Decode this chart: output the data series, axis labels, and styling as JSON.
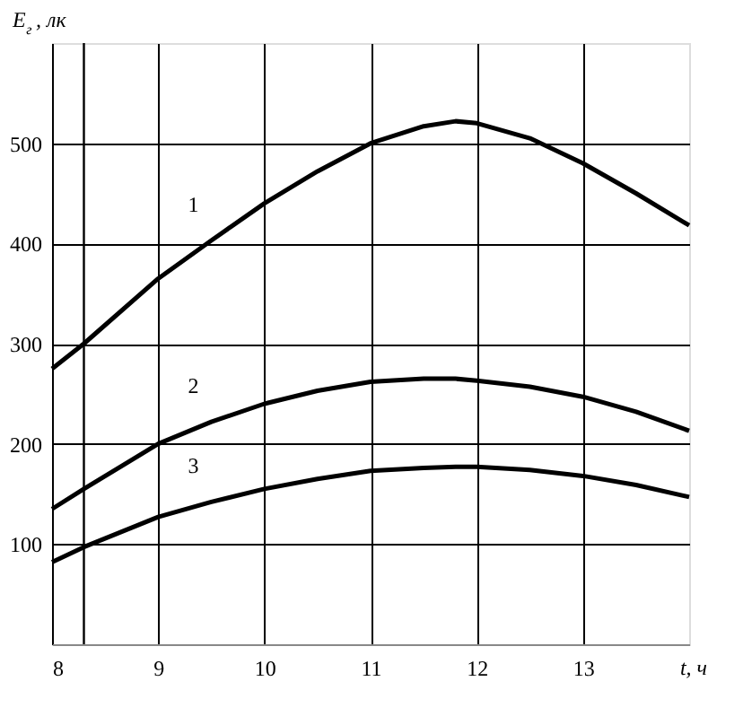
{
  "chart_data": {
    "type": "line",
    "xlabel": "t, ч",
    "ylabel": "E$_{г}$, лк",
    "x": [
      8,
      8.3,
      9,
      9.5,
      10,
      10.5,
      11,
      11.5,
      11.8,
      12,
      12.5,
      13,
      13.5,
      14
    ],
    "series": [
      {
        "name": "1",
        "color": "#000000",
        "values": [
          275,
          300,
          365,
          403,
          440,
          472,
          500,
          517,
          522,
          520,
          505,
          480,
          450,
          418
        ]
      },
      {
        "name": "2",
        "color": "#000000",
        "values": [
          135,
          155,
          200,
          222,
          240,
          253,
          262,
          265,
          265,
          263,
          257,
          247,
          232,
          213
        ]
      },
      {
        "name": "3",
        "color": "#000000",
        "values": [
          82,
          97,
          127,
          142,
          155,
          165,
          173,
          176,
          177,
          177,
          174,
          168,
          159,
          147
        ]
      }
    ],
    "ref_lines": [
      {
        "axis": "x",
        "value": 8.3,
        "color": "#000000"
      }
    ],
    "xlim": [
      8,
      14
    ],
    "xticks": [
      8,
      9,
      10,
      11,
      12,
      13
    ],
    "ylim": [
      0,
      600
    ],
    "yticks": [
      100,
      200,
      300,
      400,
      500
    ],
    "grid": true,
    "marker": "none",
    "line_style": "solid"
  }
}
